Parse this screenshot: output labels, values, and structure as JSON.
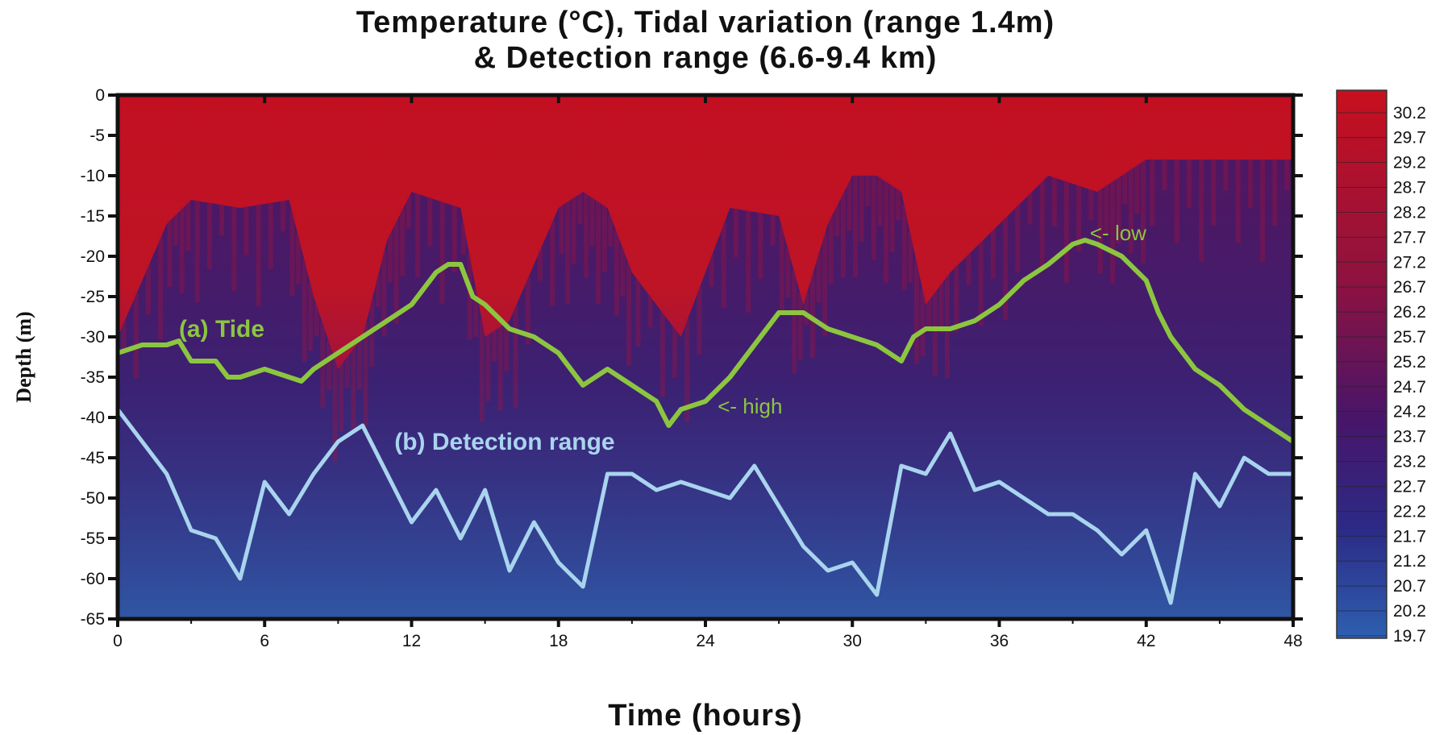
{
  "chart_data": {
    "type": "heatmap",
    "title_line1": "Temperature (°C), Tidal variation (range 1.4m)",
    "title_line2": "& Detection range (6.6-9.4 km)",
    "xlabel": "Time (hours)",
    "ylabel": "Depth (m)",
    "xlim": [
      0,
      48
    ],
    "ylim": [
      -65,
      0
    ],
    "x_ticks": [
      0,
      6,
      12,
      18,
      24,
      30,
      36,
      42,
      48
    ],
    "y_ticks": [
      0,
      -5,
      -10,
      -15,
      -20,
      -25,
      -30,
      -35,
      -40,
      -45,
      -50,
      -55,
      -60,
      -65
    ],
    "colorbar": {
      "labels": [
        "30.2",
        "29.7",
        "29.2",
        "28.7",
        "28.2",
        "27.7",
        "27.2",
        "26.7",
        "26.2",
        "25.7",
        "25.2",
        "24.7",
        "24.2",
        "23.7",
        "23.2",
        "22.7",
        "22.2",
        "21.7",
        "21.2",
        "20.7",
        "20.2",
        "19.7"
      ],
      "high_color": "#c8101e",
      "mid_color": "#3a1570",
      "low_color": "#2e5fb0"
    },
    "warm_layer_depth": {
      "x": [
        0,
        2,
        3,
        5,
        7,
        8,
        9,
        10,
        11,
        12,
        14,
        15,
        16,
        18,
        19,
        20,
        21,
        23,
        25,
        27,
        28,
        29,
        30,
        31,
        32,
        33,
        34,
        36,
        38,
        40,
        41,
        42,
        44,
        46,
        48
      ],
      "y": [
        -30,
        -16,
        -13,
        -14,
        -13,
        -25,
        -34,
        -30,
        -18,
        -12,
        -14,
        -30,
        -28,
        -14,
        -12,
        -14,
        -22,
        -30,
        -14,
        -15,
        -26,
        -16,
        -10,
        -10,
        -12,
        -26,
        -22,
        -16,
        -10,
        -12,
        -10,
        -8,
        -8,
        -8,
        -8
      ]
    },
    "series": [
      {
        "name": "(a) Tide",
        "color": "#8cc63f",
        "x": [
          0,
          1,
          2,
          2.5,
          3,
          4,
          4.5,
          5,
          6,
          7,
          7.5,
          8,
          9,
          10,
          11,
          12,
          13,
          13.5,
          14,
          14.5,
          15,
          16,
          17,
          18,
          19,
          20,
          21,
          22,
          22.5,
          23,
          24,
          25,
          26,
          27,
          28,
          29,
          30,
          31,
          32,
          32.5,
          33,
          34,
          35,
          36,
          37,
          38,
          39,
          39.5,
          40,
          41,
          42,
          42.5,
          43,
          44,
          45,
          46,
          47,
          48
        ],
        "y": [
          -32,
          -31,
          -31,
          -30.5,
          -33,
          -33,
          -35,
          -35,
          -34,
          -35,
          -35.5,
          -34,
          -32,
          -30,
          -28,
          -26,
          -22,
          -21,
          -21,
          -25,
          -26,
          -29,
          -30,
          -32,
          -36,
          -34,
          -36,
          -38,
          -41,
          -39,
          -38,
          -35,
          -31,
          -27,
          -27,
          -29,
          -30,
          -31,
          -33,
          -30,
          -29,
          -29,
          -28,
          -26,
          -23,
          -21,
          -18.5,
          -18,
          -18.5,
          -20,
          -23,
          -27,
          -30,
          -34,
          -36,
          -39,
          -41,
          -43
        ]
      },
      {
        "name": "(b) Detection range",
        "color": "#a9d4ee",
        "x": [
          0,
          1,
          2,
          3,
          4,
          5,
          6,
          7,
          8,
          9,
          10,
          11,
          12,
          13,
          14,
          15,
          16,
          17,
          18,
          19,
          20,
          21,
          22,
          23,
          24,
          25,
          26,
          27,
          28,
          29,
          30,
          31,
          32,
          33,
          34,
          35,
          36,
          37,
          38,
          39,
          40,
          41,
          42,
          43,
          44,
          45,
          46,
          47,
          48
        ],
        "y": [
          -39,
          -43,
          -47,
          -54,
          -55,
          -60,
          -48,
          -52,
          -47,
          -43,
          -41,
          -47,
          -53,
          -49,
          -55,
          -49,
          -59,
          -53,
          -58,
          -61,
          -47,
          -47,
          -49,
          -48,
          -49,
          -50,
          -46,
          -51,
          -56,
          -59,
          -58,
          -62,
          -46,
          -47,
          -42,
          -49,
          -48,
          -50,
          -52,
          -52,
          -54,
          -57,
          -54,
          -63,
          -47,
          -51,
          -45,
          -47,
          -47
        ]
      }
    ],
    "annotations": [
      {
        "text": "(a) Tide",
        "x": 2.5,
        "y": -30
      },
      {
        "text": "(b) Detection range",
        "x": 11.3,
        "y": -44
      },
      {
        "text": "<- high",
        "x": 24.5,
        "y": -39.5
      },
      {
        "text": "<- low",
        "x": 39.7,
        "y": -18
      }
    ],
    "grid": false,
    "legend": "none"
  }
}
